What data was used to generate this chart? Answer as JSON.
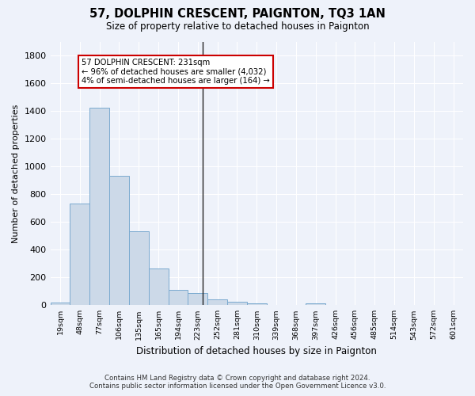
{
  "title": "57, DOLPHIN CRESCENT, PAIGNTON, TQ3 1AN",
  "subtitle": "Size of property relative to detached houses in Paignton",
  "xlabel": "Distribution of detached houses by size in Paignton",
  "ylabel": "Number of detached properties",
  "bar_color": "#ccd9e8",
  "bar_edge_color": "#7aaad0",
  "background_color": "#eef2fa",
  "grid_color": "#ffffff",
  "categories": [
    "19sqm",
    "48sqm",
    "77sqm",
    "106sqm",
    "135sqm",
    "165sqm",
    "194sqm",
    "223sqm",
    "252sqm",
    "281sqm",
    "310sqm",
    "339sqm",
    "368sqm",
    "397sqm",
    "426sqm",
    "456sqm",
    "485sqm",
    "514sqm",
    "543sqm",
    "572sqm",
    "601sqm"
  ],
  "values": [
    19,
    735,
    1425,
    935,
    530,
    265,
    108,
    90,
    40,
    25,
    15,
    0,
    0,
    15,
    0,
    0,
    0,
    0,
    0,
    0,
    0
  ],
  "annotation_line1": "57 DOLPHIN CRESCENT: 231sqm",
  "annotation_line2": "← 96% of detached houses are smaller (4,032)",
  "annotation_line3": "4% of semi-detached houses are larger (164) →",
  "annotation_box_color": "#ffffff",
  "annotation_box_edge": "#cc0000",
  "vline_color": "#222222",
  "footer_line1": "Contains HM Land Registry data © Crown copyright and database right 2024.",
  "footer_line2": "Contains public sector information licensed under the Open Government Licence v3.0.",
  "ylim": [
    0,
    1900
  ],
  "yticks": [
    0,
    200,
    400,
    600,
    800,
    1000,
    1200,
    1400,
    1600,
    1800
  ],
  "vline_index": 7.27
}
